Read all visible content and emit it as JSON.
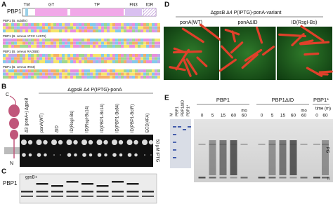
{
  "panels": [
    "A",
    "B",
    "C",
    "D",
    "E"
  ],
  "a": {
    "protein": "PBP1",
    "domains": [
      "TM",
      "GT",
      "TP",
      "FN3",
      "IDR"
    ],
    "sequences": [
      "PBP1 (B. subtilis)",
      "PBP1 (B. cereus ATCC 14579)",
      "PBP1 (B. cereus RAOBB)",
      "PBP1 (B. cereus IRS3)"
    ]
  },
  "b": {
    "diagram": [
      "C",
      "N"
    ],
    "control": "Δ3 (ponA+) ΔgpsB",
    "header": "ΔgpsB Δ4 P(IPTG)-ponA",
    "columns": [
      "ponA(WT)",
      "ΔID",
      "ID(RsgI-Bs)",
      "ID(RsgI-Bc14)",
      "ID(PBP1-Bc14)",
      "ID(PBP1-Bc84)",
      "ID(PBP1-BcIR)",
      "ECD(4FA)"
    ],
    "condition": "50 μM IPTG"
  },
  "c": {
    "label": "PBP1",
    "marker": "gpsB+"
  },
  "d": {
    "header": "ΔgpsB Δ4 P(IPTG)-ponA-variant",
    "images": [
      "ponA(WT)",
      "ponAΔID",
      "ID(RsgI-Bs)"
    ]
  },
  "e": {
    "lanes": [
      "M",
      "PBP1",
      "PBP1ΔID",
      "PBP1*"
    ],
    "groups": [
      {
        "name": "PBP1",
        "times": [
          "0",
          "5",
          "15",
          "60",
          "60"
        ],
        "mo": "mo"
      },
      {
        "name": "PBP1ΔID",
        "times": [
          "0",
          "5",
          "15",
          "60",
          "60"
        ],
        "mo": "mo"
      },
      {
        "name": "PBP1*",
        "times": [
          "0",
          "60"
        ]
      }
    ],
    "time": "time (m)",
    "products": [
      "PG",
      "II"
    ]
  }
}
